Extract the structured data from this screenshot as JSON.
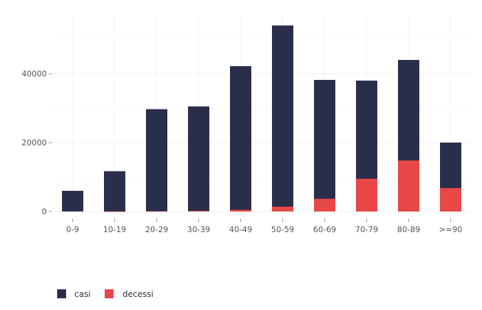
{
  "chart_data": {
    "type": "bar",
    "stacked": "overlay",
    "categories": [
      "0-9",
      "10-19",
      "20-29",
      "30-39",
      "40-49",
      "50-59",
      "60-69",
      "70-79",
      "80-89",
      ">=90"
    ],
    "series": [
      {
        "name": "casi",
        "color": "#2a2e4b",
        "values": [
          6000,
          11700,
          29700,
          30500,
          42200,
          54000,
          38200,
          38000,
          44000,
          20000
        ]
      },
      {
        "name": "decessi",
        "color": "#e84747",
        "values": [
          0,
          20,
          80,
          170,
          480,
          1400,
          3700,
          9500,
          14800,
          6800
        ]
      }
    ],
    "title": "",
    "xlabel": "",
    "ylabel": "",
    "ylim": [
      0,
      56000
    ],
    "yticks": [
      0,
      20000,
      40000
    ],
    "ytick_labels": [
      "0",
      "20000",
      "40000"
    ],
    "grid": true,
    "legend_position": "bottom-left"
  }
}
